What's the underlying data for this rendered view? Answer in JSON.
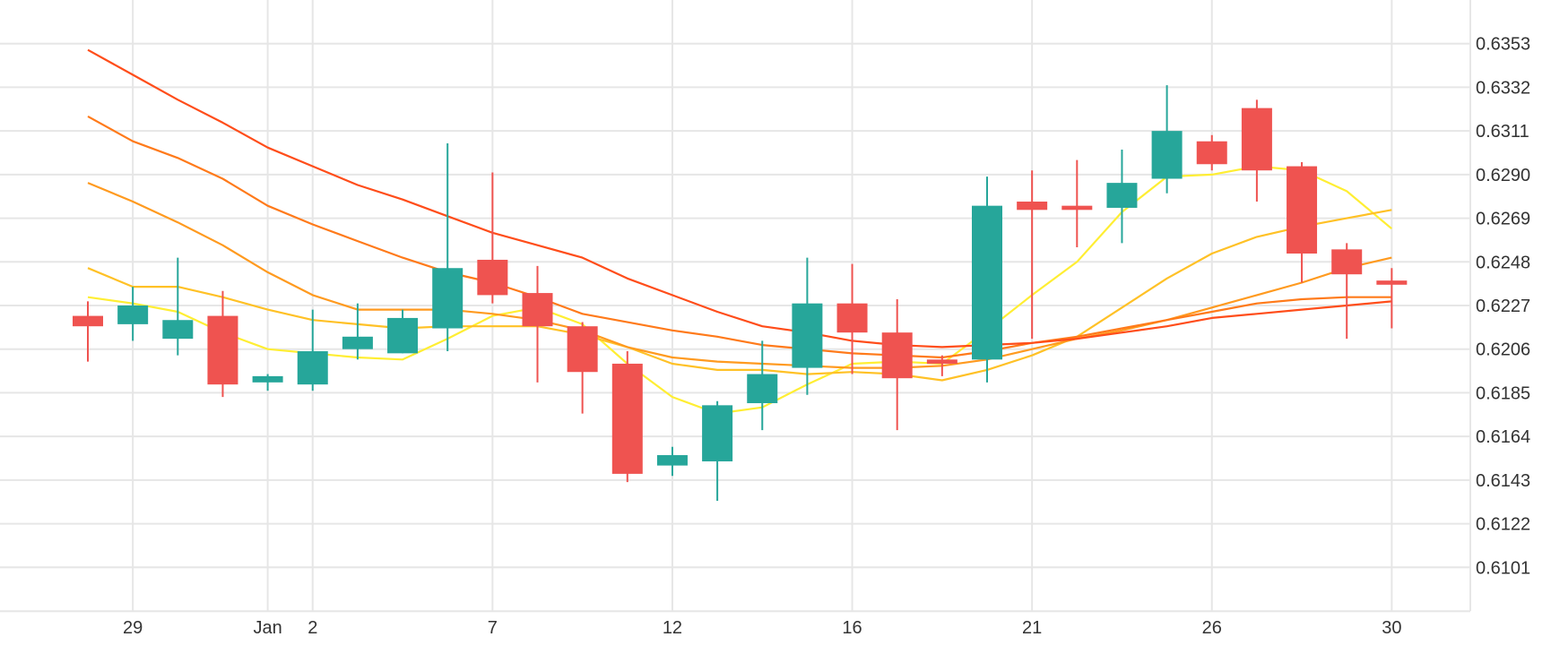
{
  "chart_data": {
    "type": "candlestick",
    "title": "",
    "xlabel": "",
    "ylabel": "",
    "grid": true,
    "colors": {
      "up": "#26a69a",
      "down": "#ef5350",
      "grid": "#e6e6e6",
      "text": "#333333"
    },
    "ylim": [
      0.608,
      0.6374
    ],
    "y_ticks": [
      "0.6353",
      "0.6332",
      "0.6311",
      "0.6290",
      "0.6269",
      "0.6248",
      "0.6227",
      "0.6206",
      "0.6185",
      "0.6164",
      "0.6143",
      "0.6122",
      "0.6101"
    ],
    "x_ticks": [
      {
        "label": "29",
        "index": 1
      },
      {
        "label": "Jan",
        "index": 4
      },
      {
        "label": "2",
        "index": 5
      },
      {
        "label": "7",
        "index": 9
      },
      {
        "label": "12",
        "index": 13
      },
      {
        "label": "16",
        "index": 17
      },
      {
        "label": "21",
        "index": 21
      },
      {
        "label": "26",
        "index": 25
      },
      {
        "label": "30",
        "index": 29
      }
    ],
    "candles": [
      {
        "o": 0.6222,
        "h": 0.6229,
        "l": 0.62,
        "c": 0.6217
      },
      {
        "o": 0.6218,
        "h": 0.6236,
        "l": 0.621,
        "c": 0.6227
      },
      {
        "o": 0.6211,
        "h": 0.625,
        "l": 0.6203,
        "c": 0.622
      },
      {
        "o": 0.6222,
        "h": 0.6234,
        "l": 0.6183,
        "c": 0.6189
      },
      {
        "o": 0.619,
        "h": 0.6194,
        "l": 0.6186,
        "c": 0.6193
      },
      {
        "o": 0.6189,
        "h": 0.6225,
        "l": 0.6186,
        "c": 0.6205
      },
      {
        "o": 0.6206,
        "h": 0.6228,
        "l": 0.6201,
        "c": 0.6212
      },
      {
        "o": 0.6204,
        "h": 0.6225,
        "l": 0.6204,
        "c": 0.6221
      },
      {
        "o": 0.6216,
        "h": 0.6305,
        "l": 0.6205,
        "c": 0.6245
      },
      {
        "o": 0.6249,
        "h": 0.6291,
        "l": 0.6228,
        "c": 0.6232
      },
      {
        "o": 0.6233,
        "h": 0.6246,
        "l": 0.619,
        "c": 0.6217
      },
      {
        "o": 0.6217,
        "h": 0.6219,
        "l": 0.6175,
        "c": 0.6195
      },
      {
        "o": 0.6199,
        "h": 0.6205,
        "l": 0.6142,
        "c": 0.6146
      },
      {
        "o": 0.615,
        "h": 0.6159,
        "l": 0.6145,
        "c": 0.6155
      },
      {
        "o": 0.6152,
        "h": 0.6181,
        "l": 0.6133,
        "c": 0.6179
      },
      {
        "o": 0.618,
        "h": 0.621,
        "l": 0.6167,
        "c": 0.6194
      },
      {
        "o": 0.6197,
        "h": 0.625,
        "l": 0.6184,
        "c": 0.6228
      },
      {
        "o": 0.6228,
        "h": 0.6247,
        "l": 0.6194,
        "c": 0.6214
      },
      {
        "o": 0.6214,
        "h": 0.623,
        "l": 0.6167,
        "c": 0.6192
      },
      {
        "o": 0.6201,
        "h": 0.6203,
        "l": 0.6193,
        "c": 0.6199
      },
      {
        "o": 0.6201,
        "h": 0.6289,
        "l": 0.619,
        "c": 0.6275
      },
      {
        "o": 0.6277,
        "h": 0.6292,
        "l": 0.6211,
        "c": 0.6273
      },
      {
        "o": 0.6275,
        "h": 0.6297,
        "l": 0.6255,
        "c": 0.6273
      },
      {
        "o": 0.6274,
        "h": 0.6302,
        "l": 0.6257,
        "c": 0.6286
      },
      {
        "o": 0.6288,
        "h": 0.6333,
        "l": 0.6281,
        "c": 0.6311
      },
      {
        "o": 0.6306,
        "h": 0.6309,
        "l": 0.6292,
        "c": 0.6295
      },
      {
        "o": 0.6322,
        "h": 0.6326,
        "l": 0.6277,
        "c": 0.6292
      },
      {
        "o": 0.6294,
        "h": 0.6296,
        "l": 0.6238,
        "c": 0.6252
      },
      {
        "o": 0.6254,
        "h": 0.6257,
        "l": 0.6211,
        "c": 0.6242
      },
      {
        "o": 0.6239,
        "h": 0.6245,
        "l": 0.6216,
        "c": 0.6237
      }
    ],
    "series": [
      {
        "color": "#ffee33",
        "values": [
          0.6231,
          0.6228,
          0.6224,
          0.6214,
          0.6206,
          0.6204,
          0.6202,
          0.6201,
          0.6211,
          0.6222,
          0.6226,
          0.6218,
          0.6199,
          0.6183,
          0.6175,
          0.6178,
          0.6189,
          0.6199,
          0.62,
          0.6199,
          0.6215,
          0.6232,
          0.6248,
          0.6272,
          0.6289,
          0.629,
          0.6294,
          0.6292,
          0.6282,
          0.6264
        ]
      },
      {
        "color": "#ffc126",
        "values": [
          0.6245,
          0.6236,
          0.6236,
          0.6231,
          0.6225,
          0.622,
          0.6218,
          0.6216,
          0.6217,
          0.6217,
          0.6217,
          0.6213,
          0.6207,
          0.6199,
          0.6196,
          0.6196,
          0.6194,
          0.6195,
          0.6194,
          0.6191,
          0.6196,
          0.6203,
          0.6212,
          0.6226,
          0.624,
          0.6252,
          0.626,
          0.6265,
          0.6269,
          0.6273
        ]
      },
      {
        "color": "#ff9a1f",
        "values": [
          0.6286,
          0.6277,
          0.6267,
          0.6256,
          0.6243,
          0.6232,
          0.6225,
          0.6225,
          0.6225,
          0.6223,
          0.622,
          0.6215,
          0.6207,
          0.6202,
          0.62,
          0.6199,
          0.6198,
          0.6197,
          0.6197,
          0.6198,
          0.6201,
          0.6206,
          0.6211,
          0.6215,
          0.622,
          0.6226,
          0.6232,
          0.6238,
          0.6245,
          0.625
        ]
      },
      {
        "color": "#ff7a1a",
        "values": [
          0.6318,
          0.6306,
          0.6298,
          0.6288,
          0.6275,
          0.6266,
          0.6258,
          0.625,
          0.6243,
          0.6238,
          0.6231,
          0.6223,
          0.6219,
          0.6215,
          0.6212,
          0.6208,
          0.6206,
          0.6204,
          0.6203,
          0.6202,
          0.6205,
          0.6209,
          0.6212,
          0.6216,
          0.622,
          0.6224,
          0.6228,
          0.623,
          0.6231,
          0.6231
        ]
      },
      {
        "color": "#ff4d1a",
        "values": [
          0.635,
          0.6338,
          0.6326,
          0.6315,
          0.6303,
          0.6294,
          0.6285,
          0.6278,
          0.627,
          0.6262,
          0.6256,
          0.625,
          0.624,
          0.6232,
          0.6224,
          0.6217,
          0.6214,
          0.621,
          0.6208,
          0.6207,
          0.6208,
          0.6209,
          0.6211,
          0.6214,
          0.6217,
          0.6221,
          0.6223,
          0.6225,
          0.6227,
          0.6229
        ]
      }
    ]
  }
}
